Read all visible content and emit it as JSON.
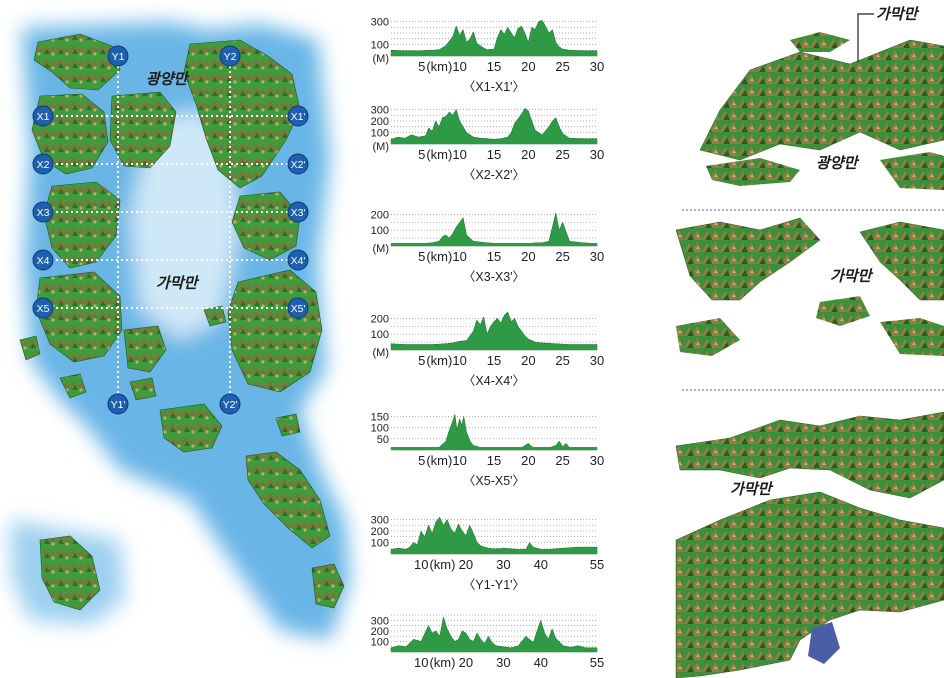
{
  "map": {
    "bay_north": "광양만",
    "bay_center": "가막만",
    "markers": [
      {
        "id": "y1",
        "text": "Y1"
      },
      {
        "id": "y2",
        "text": "Y2"
      },
      {
        "id": "y1p",
        "text": "Y1'"
      },
      {
        "id": "y2p",
        "text": "Y2'"
      },
      {
        "id": "x1",
        "text": "X1"
      },
      {
        "id": "x2",
        "text": "X2"
      },
      {
        "id": "x3",
        "text": "X3"
      },
      {
        "id": "x4",
        "text": "X4"
      },
      {
        "id": "x5",
        "text": "X5"
      },
      {
        "id": "x1p",
        "text": "X1'"
      },
      {
        "id": "x2p",
        "text": "X2'"
      },
      {
        "id": "x3p",
        "text": "X3'"
      },
      {
        "id": "x4p",
        "text": "X4'"
      },
      {
        "id": "x5p",
        "text": "X5'"
      }
    ]
  },
  "views": {
    "top_callout": "가막만",
    "top_bay": "광양만",
    "middle_bay": "가막만",
    "bottom_bay": "가막만"
  },
  "chart_data": [
    {
      "type": "area",
      "caption": "〈X1-X1'〉",
      "x_unit": "(km)",
      "y_unit": "(M)",
      "yticks": [
        100,
        300
      ],
      "ylim": [
        0,
        330
      ],
      "xlim": [
        0,
        30
      ],
      "xticks": [
        5,
        10,
        15,
        20,
        25,
        30
      ],
      "x": [
        0,
        2,
        4,
        6,
        7,
        8,
        9,
        9.5,
        10,
        10.5,
        11,
        11.5,
        12,
        12.5,
        13,
        13.5,
        14,
        15,
        15.5,
        16,
        16.5,
        17,
        17.5,
        18,
        18.5,
        19,
        19.5,
        20,
        20.5,
        21,
        21.5,
        22,
        22.5,
        23,
        23.5,
        24,
        24.5,
        25,
        26,
        28,
        30
      ],
      "values": [
        50,
        45,
        45,
        50,
        55,
        90,
        170,
        260,
        180,
        230,
        120,
        150,
        210,
        110,
        90,
        70,
        55,
        60,
        160,
        230,
        190,
        250,
        200,
        160,
        240,
        260,
        200,
        120,
        250,
        230,
        300,
        310,
        260,
        200,
        230,
        120,
        80,
        60,
        50,
        45,
        45
      ]
    },
    {
      "type": "area",
      "caption": "〈X2-X2'〉",
      "x_unit": "(km)",
      "y_unit": "(M)",
      "yticks": [
        100,
        200,
        300
      ],
      "ylim": [
        0,
        330
      ],
      "xlim": [
        0,
        30
      ],
      "xticks": [
        5,
        10,
        15,
        20,
        25,
        30
      ],
      "x": [
        0,
        1,
        2,
        3,
        4,
        5,
        5.5,
        6,
        6.5,
        7,
        7.5,
        8,
        8.5,
        9,
        9.5,
        10,
        10.5,
        11,
        11.5,
        12,
        13,
        14,
        15,
        16,
        17,
        17.5,
        18,
        18.5,
        19,
        19.5,
        20,
        20.5,
        21,
        22,
        23,
        23.5,
        24,
        24.5,
        25,
        26,
        28,
        30
      ],
      "values": [
        40,
        60,
        50,
        80,
        60,
        70,
        140,
        110,
        200,
        150,
        230,
        240,
        280,
        250,
        300,
        200,
        150,
        100,
        80,
        60,
        50,
        45,
        40,
        45,
        60,
        100,
        180,
        220,
        260,
        310,
        290,
        200,
        120,
        80,
        150,
        200,
        230,
        150,
        90,
        50,
        45,
        45
      ]
    },
    {
      "type": "area",
      "caption": "〈X3-X3'〉",
      "x_unit": "(km)",
      "y_unit": "(M)",
      "yticks": [
        100,
        200
      ],
      "ylim": [
        0,
        240
      ],
      "xlim": [
        0,
        30
      ],
      "xticks": [
        5,
        10,
        15,
        20,
        25,
        30
      ],
      "x": [
        0,
        2,
        4,
        6,
        7,
        7.5,
        8,
        8.5,
        9,
        9.5,
        10,
        10.5,
        11,
        12,
        14,
        16,
        18,
        20,
        21,
        22,
        23,
        23.5,
        24,
        24.5,
        25,
        25.5,
        26,
        28,
        30
      ],
      "values": [
        15,
        15,
        15,
        20,
        30,
        60,
        70,
        50,
        80,
        120,
        150,
        180,
        70,
        30,
        20,
        15,
        15,
        15,
        20,
        20,
        30,
        120,
        210,
        100,
        150,
        90,
        30,
        20,
        15
      ]
    },
    {
      "type": "area",
      "caption": "〈X4-X4'〉",
      "x_unit": "(km)",
      "y_unit": "(M)",
      "yticks": [
        100,
        200
      ],
      "ylim": [
        0,
        240
      ],
      "xlim": [
        0,
        30
      ],
      "xticks": [
        5,
        10,
        15,
        20,
        25,
        30
      ],
      "x": [
        0,
        2,
        4,
        6,
        8,
        9,
        10,
        11,
        12,
        12.5,
        13,
        13.5,
        14,
        14.5,
        15,
        15.5,
        16,
        16.5,
        17,
        17.5,
        18,
        18.5,
        19,
        19.5,
        20,
        21,
        22,
        24,
        26,
        28,
        30
      ],
      "values": [
        40,
        35,
        35,
        35,
        40,
        45,
        55,
        60,
        120,
        190,
        160,
        210,
        100,
        150,
        180,
        200,
        170,
        220,
        240,
        180,
        200,
        150,
        120,
        90,
        70,
        50,
        45,
        40,
        35,
        35,
        35
      ]
    },
    {
      "type": "area",
      "caption": "〈X5-X5'〉",
      "x_unit": "(km)",
      "y_unit": "",
      "yticks": [
        50,
        100,
        150
      ],
      "ylim": [
        0,
        170
      ],
      "xlim": [
        0,
        30
      ],
      "xticks": [
        5,
        10,
        15,
        20,
        25,
        30
      ],
      "x": [
        0,
        4,
        7,
        8,
        8.5,
        9,
        9.3,
        9.6,
        10,
        10.3,
        10.6,
        11,
        11.5,
        12,
        13,
        15,
        17,
        19,
        20,
        20.5,
        21,
        23,
        24,
        24.5,
        25,
        25.5,
        26,
        28,
        30
      ],
      "values": [
        10,
        10,
        12,
        40,
        90,
        130,
        160,
        90,
        140,
        110,
        150,
        80,
        40,
        20,
        12,
        10,
        10,
        10,
        30,
        15,
        10,
        10,
        20,
        40,
        15,
        30,
        10,
        10,
        10
      ]
    },
    {
      "type": "area",
      "caption": "〈Y1-Y1'〉",
      "x_unit": "(km)",
      "y_unit": "",
      "yticks": [
        100,
        200,
        300
      ],
      "ylim": [
        0,
        330
      ],
      "xlim": [
        0,
        55
      ],
      "xticks": [
        10,
        20,
        30,
        40,
        55
      ],
      "x": [
        0,
        2,
        4,
        5,
        6,
        7,
        8,
        9,
        10,
        11,
        12,
        13,
        14,
        15,
        16,
        17,
        18,
        19,
        20,
        21,
        22,
        23,
        24,
        25,
        26,
        27,
        28,
        29,
        30,
        32,
        34,
        36,
        37,
        38,
        40,
        42,
        46,
        50,
        55
      ],
      "values": [
        40,
        50,
        40,
        60,
        100,
        80,
        200,
        150,
        250,
        180,
        280,
        320,
        250,
        300,
        220,
        180,
        260,
        200,
        160,
        250,
        180,
        100,
        70,
        60,
        50,
        45,
        45,
        45,
        50,
        45,
        40,
        40,
        100,
        60,
        40,
        40,
        50,
        60,
        60
      ]
    },
    {
      "type": "area",
      "caption": "",
      "x_unit": "(km)",
      "y_unit": "",
      "yticks": [
        100,
        200,
        300
      ],
      "ylim": [
        0,
        360
      ],
      "xlim": [
        0,
        55
      ],
      "xticks": [
        10,
        20,
        30,
        40,
        55
      ],
      "x": [
        0,
        2,
        4,
        6,
        8,
        10,
        11,
        12,
        13,
        14,
        15,
        16,
        17,
        18,
        19,
        20,
        21,
        22,
        23,
        24,
        25,
        26,
        27,
        28,
        30,
        32,
        34,
        36,
        38,
        39,
        40,
        41,
        42,
        43,
        44,
        46,
        48,
        50,
        52,
        55
      ],
      "values": [
        40,
        60,
        50,
        120,
        100,
        250,
        180,
        200,
        150,
        330,
        220,
        150,
        100,
        120,
        200,
        180,
        120,
        100,
        180,
        120,
        80,
        150,
        90,
        60,
        50,
        40,
        60,
        150,
        90,
        200,
        300,
        180,
        120,
        220,
        130,
        60,
        45,
        60,
        40,
        40
      ]
    }
  ]
}
